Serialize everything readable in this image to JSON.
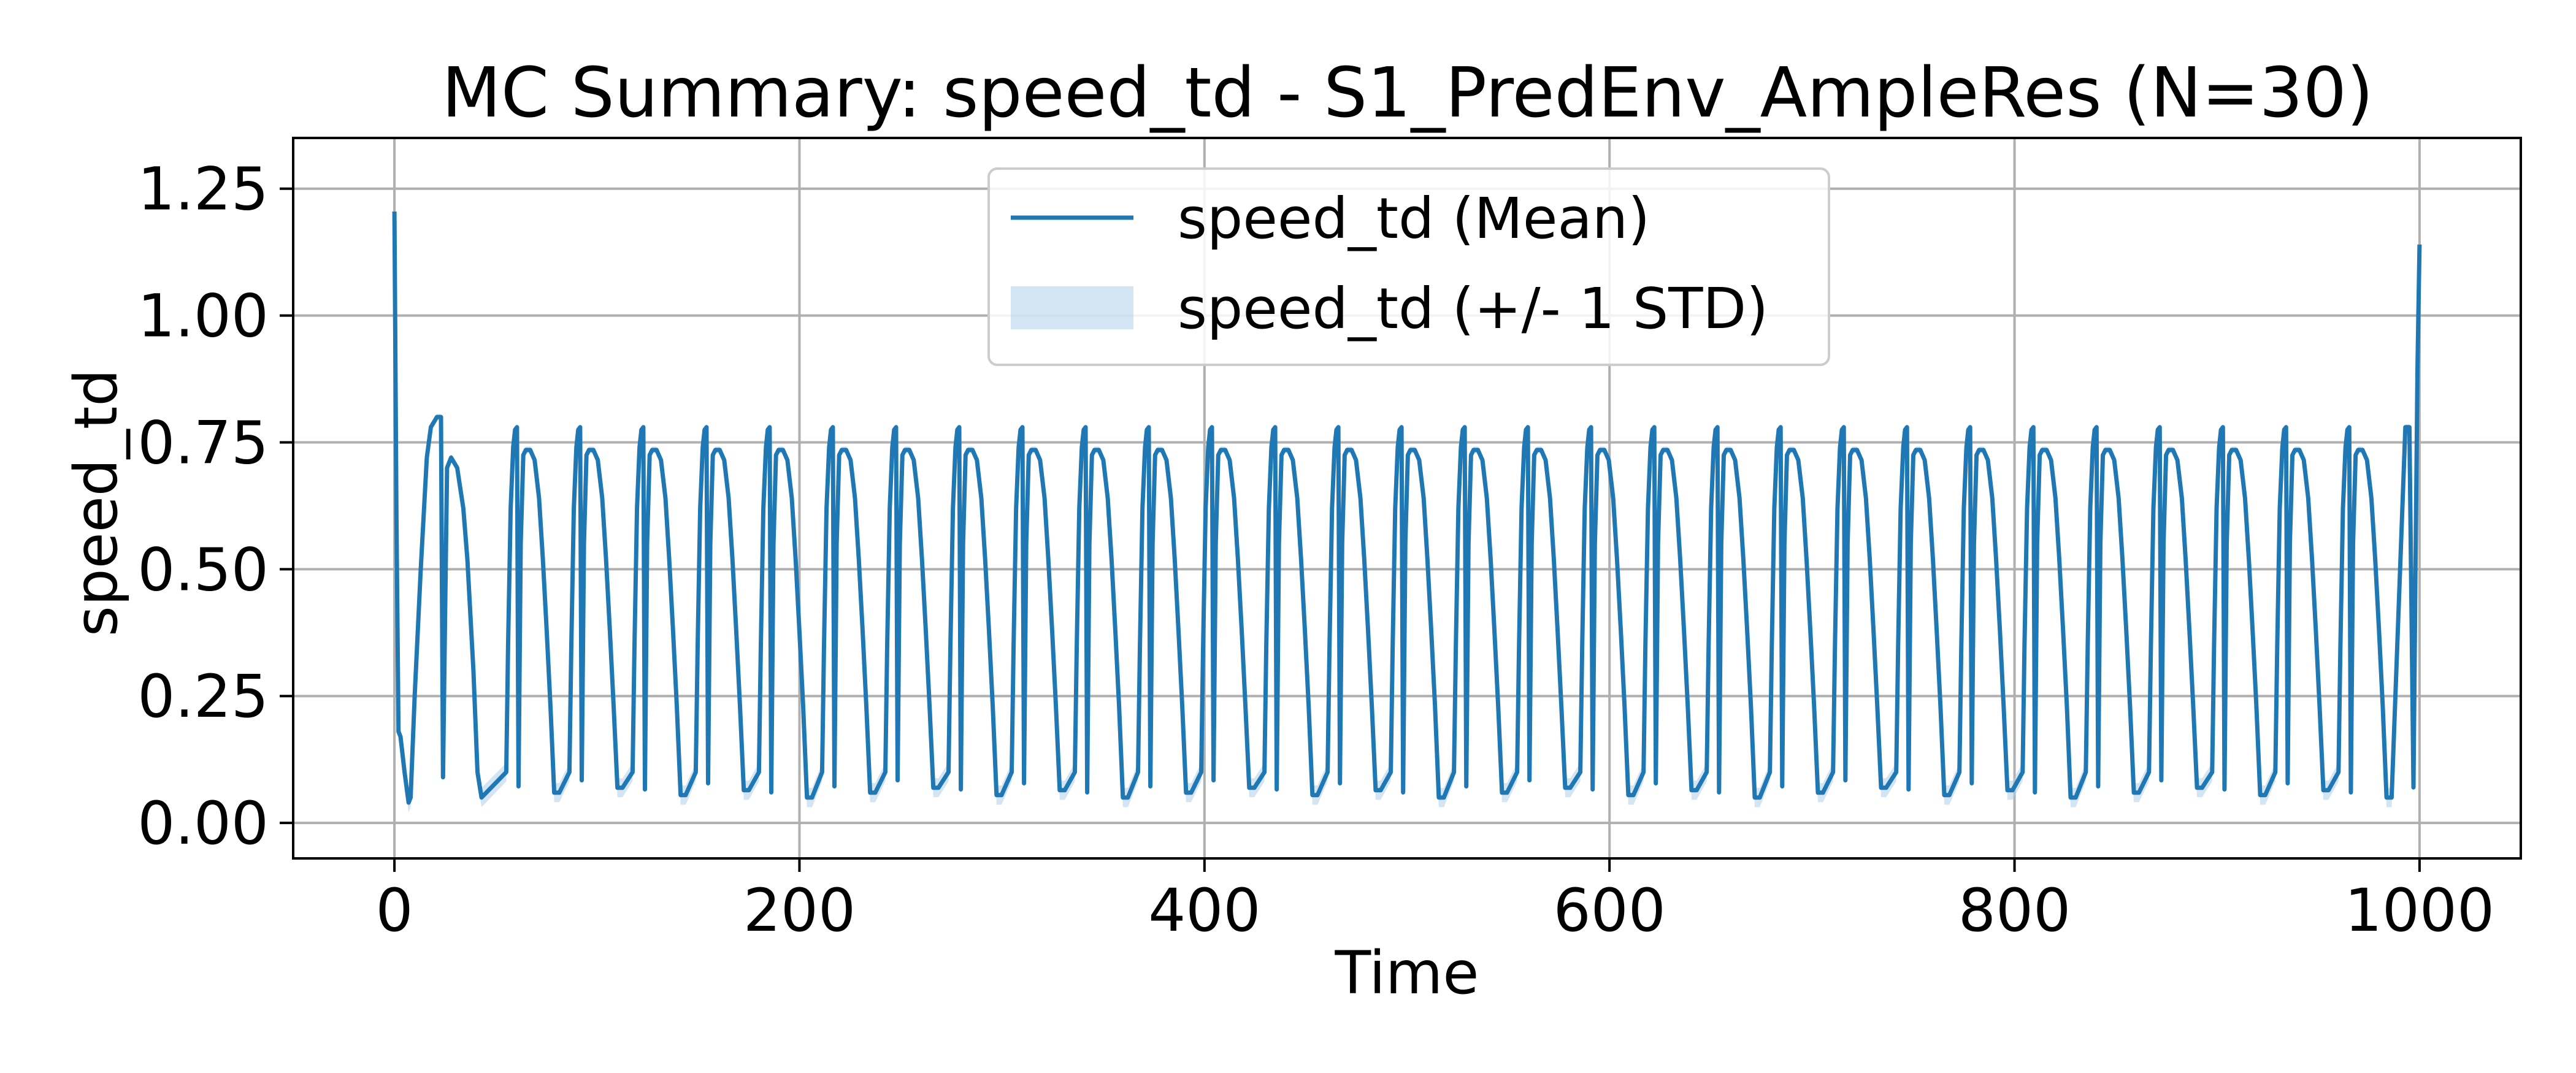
{
  "chart_data": {
    "type": "line",
    "title": "MC Summary: speed_td - S1_PredEnv_AmpleRes (N=30)",
    "xlabel": "Time",
    "ylabel": "speed_td",
    "xlim": [
      -50,
      1050
    ],
    "ylim": [
      -0.07,
      1.35
    ],
    "xticks": [
      0,
      200,
      400,
      600,
      800,
      1000
    ],
    "xtick_labels": [
      "0",
      "200",
      "400",
      "600",
      "800",
      "1000"
    ],
    "yticks": [
      0.0,
      0.25,
      0.5,
      0.75,
      1.0,
      1.25
    ],
    "ytick_labels": [
      "0.00",
      "0.25",
      "0.50",
      "0.75",
      "1.00",
      "1.25"
    ],
    "grid": true,
    "legend_position": "upper-center",
    "colors": {
      "mean": "#1f77b4",
      "band": "#aecde8",
      "grid": "#b0b0b0"
    },
    "series": [
      {
        "name": "speed_td (Mean)",
        "kind": "line"
      },
      {
        "name": "speed_td (+/- 1 STD)",
        "kind": "band"
      }
    ],
    "pattern": {
      "cycle_period": 31.2,
      "first_cycle_start": 24,
      "last_cycle_end": 993,
      "mean_peak_high": 0.775,
      "mean_peak_plateau": 0.735,
      "mean_trough_low": 0.05,
      "mean_trough_high": 0.09,
      "std_at_trough": 0.02,
      "std_at_peak": 0.006,
      "start_spike": 1.205,
      "end_spike": 1.14,
      "early_values": [
        [
          0,
          1.205
        ],
        [
          1,
          0.6
        ],
        [
          2,
          0.18
        ],
        [
          3,
          0.17
        ],
        [
          5,
          0.1
        ],
        [
          7,
          0.04
        ],
        [
          8,
          0.05
        ],
        [
          10,
          0.25
        ],
        [
          13,
          0.5
        ],
        [
          16,
          0.72
        ],
        [
          18,
          0.78
        ],
        [
          21,
          0.8
        ],
        [
          23,
          0.8
        ],
        [
          24,
          0.09
        ],
        [
          25,
          0.4
        ],
        [
          26,
          0.7
        ],
        [
          28,
          0.72
        ],
        [
          31,
          0.7
        ],
        [
          34,
          0.62
        ],
        [
          36,
          0.52
        ],
        [
          39,
          0.3
        ],
        [
          41,
          0.1
        ],
        [
          43,
          0.05
        ]
      ],
      "late_values": [
        [
          993,
          0.78
        ],
        [
          995,
          0.78
        ],
        [
          997,
          0.07
        ],
        [
          998,
          0.5
        ],
        [
          999,
          0.9
        ],
        [
          1000,
          1.14
        ]
      ]
    }
  }
}
